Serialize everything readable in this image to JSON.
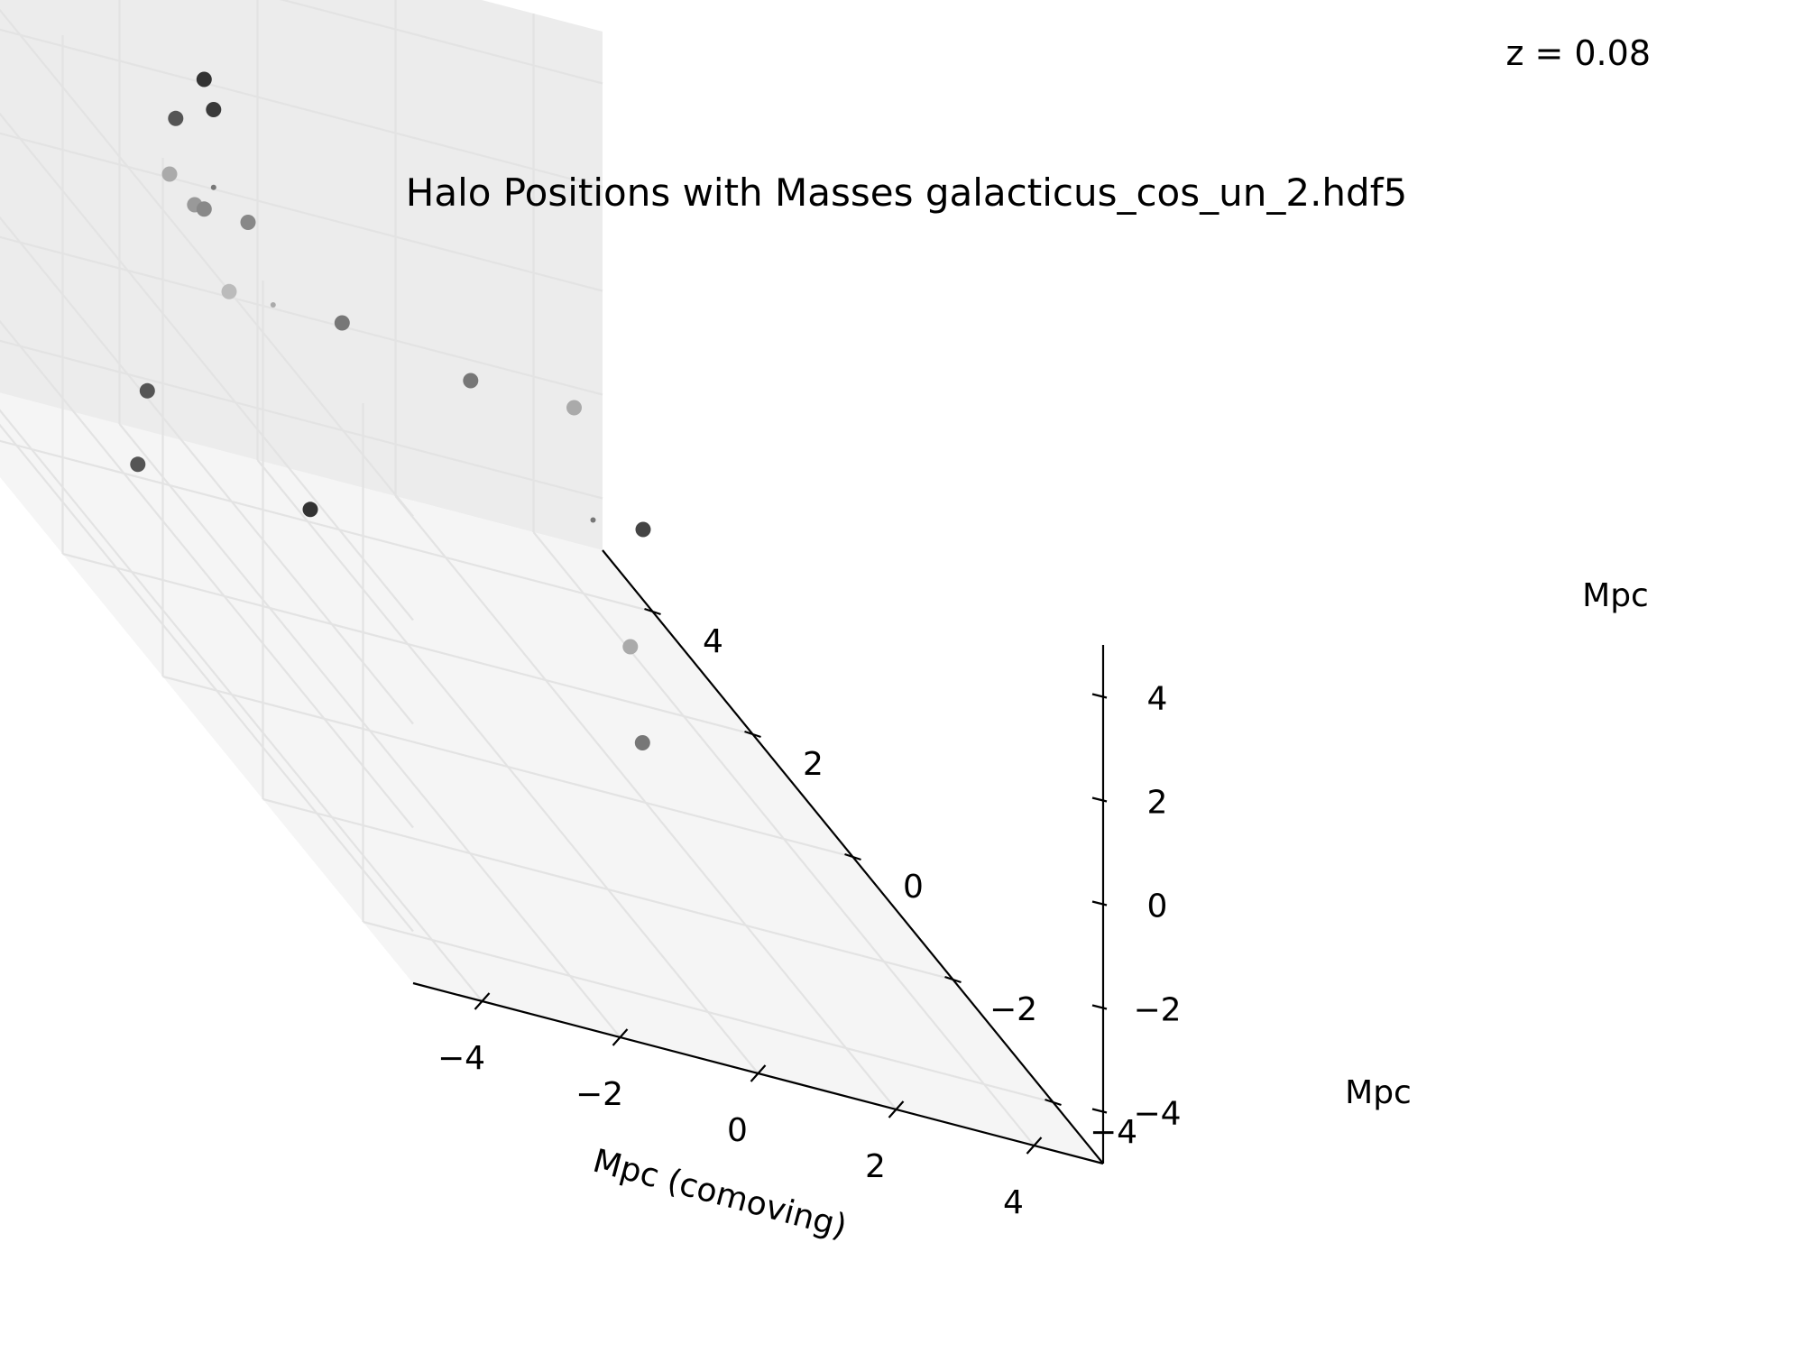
{
  "annotation": "z = 0.08",
  "chart_data": {
    "type": "scatter",
    "title": "Halo Positions with Masses galacticus_cos_un_2.hdf5",
    "xlabel": "Mpc (comoving)",
    "ylabel": "Mpc",
    "zlabel": "Mpc",
    "xlim": [
      -5,
      5
    ],
    "ylim": [
      -5,
      5
    ],
    "zlim": [
      -5,
      5
    ],
    "x_ticks": [
      -4,
      -2,
      0,
      2,
      4
    ],
    "y_ticks": [
      -4,
      -2,
      0,
      2,
      4
    ],
    "z_ticks": [
      -4,
      -2,
      0,
      2,
      4
    ],
    "x_tick_labels": [
      "−4",
      "−2",
      "0",
      "2",
      "4"
    ],
    "y_tick_labels": [
      "−4",
      "−2",
      "0",
      "2",
      "4"
    ],
    "z_tick_labels": [
      "−4",
      "−2",
      "0",
      "2",
      "4"
    ],
    "grid": true,
    "marker_color": "#555555",
    "points": [
      {
        "x": -3.0,
        "y": 2.5,
        "z": 3.5,
        "shade": "#555555",
        "size": "large"
      },
      {
        "x": -1.5,
        "y": 4.0,
        "z": 3.0,
        "shade": "#333333",
        "size": "large"
      },
      {
        "x": -1.0,
        "y": 4.5,
        "z": 2.0,
        "shade": "#3a3a3a",
        "size": "large"
      },
      {
        "x": -2.0,
        "y": 4.0,
        "z": 1.0,
        "shade": "#aaaaaa",
        "size": "large"
      },
      {
        "x": -2.0,
        "y": 3.5,
        "z": 1.0,
        "shade": "#999999",
        "size": "large"
      },
      {
        "x": -1.5,
        "y": 4.0,
        "z": 0.5,
        "shade": "#888888",
        "size": "large"
      },
      {
        "x": -1.0,
        "y": 4.5,
        "z": 0.5,
        "shade": "#777777",
        "size": "tiny"
      },
      {
        "x": -0.5,
        "y": 4.5,
        "z": 0.0,
        "shade": "#888888",
        "size": "large"
      },
      {
        "x": -1.5,
        "y": 3.5,
        "z": -0.5,
        "shade": "#bbbbbb",
        "size": "large"
      },
      {
        "x": -0.5,
        "y": 4.0,
        "z": -1.0,
        "shade": "#aaaaaa",
        "size": "tiny"
      },
      {
        "x": 0.5,
        "y": 4.0,
        "z": -1.0,
        "shade": "#777777",
        "size": "large"
      },
      {
        "x": 2.0,
        "y": 3.5,
        "z": -1.0,
        "shade": "#777777",
        "size": "large"
      },
      {
        "x": 3.5,
        "y": 3.5,
        "z": -1.0,
        "shade": "#aaaaaa",
        "size": "large"
      },
      {
        "x": 4.5,
        "y": 3.5,
        "z": -3.0,
        "shade": "#444444",
        "size": "large"
      },
      {
        "x": 4.5,
        "y": 4.5,
        "z": -4.0,
        "shade": "#777777",
        "size": "tiny"
      },
      {
        "x": 2.5,
        "y": 1.0,
        "z": -3.0,
        "shade": "#aaaaaa",
        "size": "large"
      },
      {
        "x": 0.5,
        "y": -2.0,
        "z": -2.0,
        "shade": "#777777",
        "size": "large"
      },
      {
        "x": -2.5,
        "y": 0.5,
        "z": -1.5,
        "shade": "#333333",
        "size": "large"
      },
      {
        "x": -4.5,
        "y": 1.0,
        "z": -0.5,
        "shade": "#555555",
        "size": "large"
      },
      {
        "x": -5.0,
        "y": 0.5,
        "z": -1.5,
        "shade": "#555555",
        "size": "large"
      }
    ]
  }
}
